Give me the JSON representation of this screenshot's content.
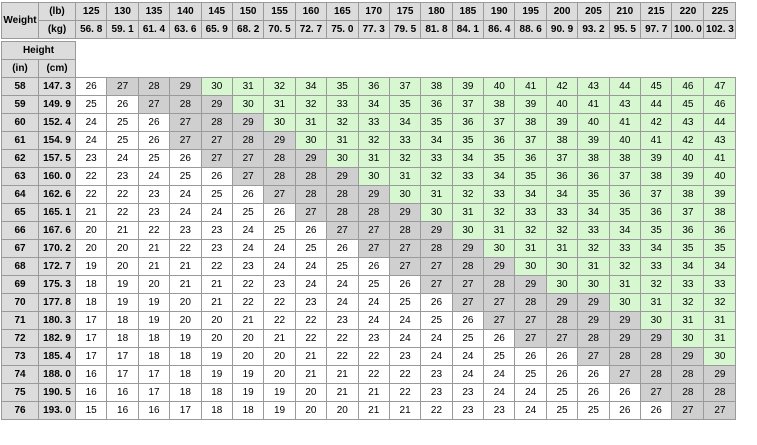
{
  "table": {
    "weight_label": "Weight",
    "lb_unit": "(lb)",
    "kg_unit": "(kg)",
    "height_label": "Height",
    "in_unit": "(in)",
    "cm_unit": "(cm)",
    "lb": [
      "125",
      "130",
      "135",
      "140",
      "145",
      "150",
      "155",
      "160",
      "165",
      "170",
      "175",
      "180",
      "185",
      "190",
      "195",
      "200",
      "205",
      "210",
      "215",
      "220",
      "225"
    ],
    "kg": [
      "56. 8",
      "59. 1",
      "61. 4",
      "63. 6",
      "65. 9",
      "68. 2",
      "70. 5",
      "72. 7",
      "75. 0",
      "77. 3",
      "79. 5",
      "81. 8",
      "84. 1",
      "86. 4",
      "88. 6",
      "90. 9",
      "93. 2",
      "95. 5",
      "97. 7",
      "100. 0",
      "102. 3"
    ],
    "rows": [
      {
        "in": "58",
        "cm": "147. 3",
        "v": [
          "26",
          "27",
          "28",
          "29",
          "30",
          "31",
          "32",
          "34",
          "35",
          "36",
          "37",
          "38",
          "39",
          "40",
          "41",
          "42",
          "43",
          "44",
          "45",
          "46",
          "47"
        ]
      },
      {
        "in": "59",
        "cm": "149. 9",
        "v": [
          "25",
          "26",
          "27",
          "28",
          "29",
          "30",
          "31",
          "32",
          "33",
          "34",
          "35",
          "36",
          "37",
          "38",
          "39",
          "40",
          "41",
          "43",
          "44",
          "45",
          "46"
        ]
      },
      {
        "in": "60",
        "cm": "152. 4",
        "v": [
          "24",
          "25",
          "26",
          "27",
          "28",
          "29",
          "30",
          "31",
          "32",
          "33",
          "34",
          "35",
          "36",
          "37",
          "38",
          "39",
          "40",
          "41",
          "42",
          "43",
          "44"
        ]
      },
      {
        "in": "61",
        "cm": "154. 9",
        "v": [
          "24",
          "25",
          "26",
          "27",
          "27",
          "28",
          "29",
          "30",
          "31",
          "32",
          "33",
          "34",
          "35",
          "36",
          "37",
          "38",
          "39",
          "40",
          "41",
          "42",
          "43"
        ]
      },
      {
        "in": "62",
        "cm": "157. 5",
        "v": [
          "23",
          "24",
          "25",
          "26",
          "27",
          "27",
          "28",
          "29",
          "30",
          "31",
          "32",
          "33",
          "34",
          "35",
          "36",
          "37",
          "38",
          "38",
          "39",
          "40",
          "41"
        ]
      },
      {
        "in": "63",
        "cm": "160. 0",
        "v": [
          "22",
          "23",
          "24",
          "25",
          "26",
          "27",
          "28",
          "28",
          "29",
          "30",
          "31",
          "32",
          "33",
          "34",
          "35",
          "36",
          "36",
          "37",
          "38",
          "39",
          "40"
        ]
      },
      {
        "in": "64",
        "cm": "162. 6",
        "v": [
          "22",
          "22",
          "23",
          "24",
          "25",
          "26",
          "27",
          "28",
          "28",
          "29",
          "30",
          "31",
          "32",
          "33",
          "34",
          "34",
          "35",
          "36",
          "37",
          "38",
          "39"
        ]
      },
      {
        "in": "65",
        "cm": "165. 1",
        "v": [
          "21",
          "22",
          "23",
          "24",
          "24",
          "25",
          "26",
          "27",
          "28",
          "28",
          "29",
          "30",
          "31",
          "32",
          "33",
          "33",
          "34",
          "35",
          "36",
          "37",
          "38"
        ]
      },
      {
        "in": "66",
        "cm": "167. 6",
        "v": [
          "20",
          "21",
          "22",
          "23",
          "23",
          "24",
          "25",
          "26",
          "27",
          "27",
          "28",
          "29",
          "30",
          "31",
          "32",
          "32",
          "33",
          "34",
          "35",
          "36",
          "36"
        ]
      },
      {
        "in": "67",
        "cm": "170. 2",
        "v": [
          "20",
          "20",
          "21",
          "22",
          "23",
          "24",
          "24",
          "25",
          "26",
          "27",
          "27",
          "28",
          "29",
          "30",
          "31",
          "31",
          "32",
          "33",
          "34",
          "35",
          "35"
        ]
      },
      {
        "in": "68",
        "cm": "172. 7",
        "v": [
          "19",
          "20",
          "21",
          "21",
          "22",
          "23",
          "24",
          "24",
          "25",
          "26",
          "27",
          "27",
          "28",
          "29",
          "30",
          "30",
          "31",
          "32",
          "33",
          "34",
          "34"
        ]
      },
      {
        "in": "69",
        "cm": "175. 3",
        "v": [
          "18",
          "19",
          "20",
          "21",
          "21",
          "22",
          "23",
          "24",
          "24",
          "25",
          "26",
          "27",
          "27",
          "28",
          "29",
          "30",
          "30",
          "31",
          "32",
          "33",
          "33"
        ]
      },
      {
        "in": "70",
        "cm": "177. 8",
        "v": [
          "18",
          "19",
          "19",
          "20",
          "21",
          "22",
          "22",
          "23",
          "24",
          "24",
          "25",
          "26",
          "27",
          "27",
          "28",
          "29",
          "29",
          "30",
          "31",
          "32",
          "32"
        ]
      },
      {
        "in": "71",
        "cm": "180. 3",
        "v": [
          "17",
          "18",
          "19",
          "20",
          "20",
          "21",
          "22",
          "22",
          "23",
          "24",
          "24",
          "25",
          "26",
          "27",
          "27",
          "28",
          "29",
          "29",
          "30",
          "31",
          "31"
        ]
      },
      {
        "in": "72",
        "cm": "182. 9",
        "v": [
          "17",
          "18",
          "18",
          "19",
          "20",
          "20",
          "21",
          "22",
          "22",
          "23",
          "24",
          "24",
          "25",
          "26",
          "27",
          "27",
          "28",
          "29",
          "29",
          "30",
          "31"
        ]
      },
      {
        "in": "73",
        "cm": "185. 4",
        "v": [
          "17",
          "17",
          "18",
          "18",
          "19",
          "20",
          "20",
          "21",
          "22",
          "22",
          "23",
          "24",
          "24",
          "25",
          "26",
          "26",
          "27",
          "28",
          "28",
          "29",
          "30"
        ]
      },
      {
        "in": "74",
        "cm": "188. 0",
        "v": [
          "16",
          "17",
          "17",
          "18",
          "19",
          "19",
          "20",
          "21",
          "21",
          "22",
          "22",
          "23",
          "24",
          "24",
          "25",
          "26",
          "26",
          "27",
          "28",
          "28",
          "29"
        ]
      },
      {
        "in": "75",
        "cm": "190. 5",
        "v": [
          "16",
          "16",
          "17",
          "18",
          "18",
          "19",
          "19",
          "20",
          "21",
          "21",
          "22",
          "23",
          "23",
          "24",
          "24",
          "25",
          "26",
          "26",
          "27",
          "28",
          "28"
        ]
      },
      {
        "in": "76",
        "cm": "193. 0",
        "v": [
          "15",
          "16",
          "16",
          "17",
          "18",
          "18",
          "19",
          "20",
          "20",
          "21",
          "21",
          "22",
          "23",
          "23",
          "24",
          "25",
          "25",
          "26",
          "26",
          "27",
          "27"
        ]
      }
    ],
    "colors": {
      "header_bg": "#dcdcdc",
      "normal_bg": "#ffffff",
      "overweight_bg": "#cfcfcf",
      "obese_bg": "#d6f7d0",
      "border": "#9a9a9a"
    }
  }
}
